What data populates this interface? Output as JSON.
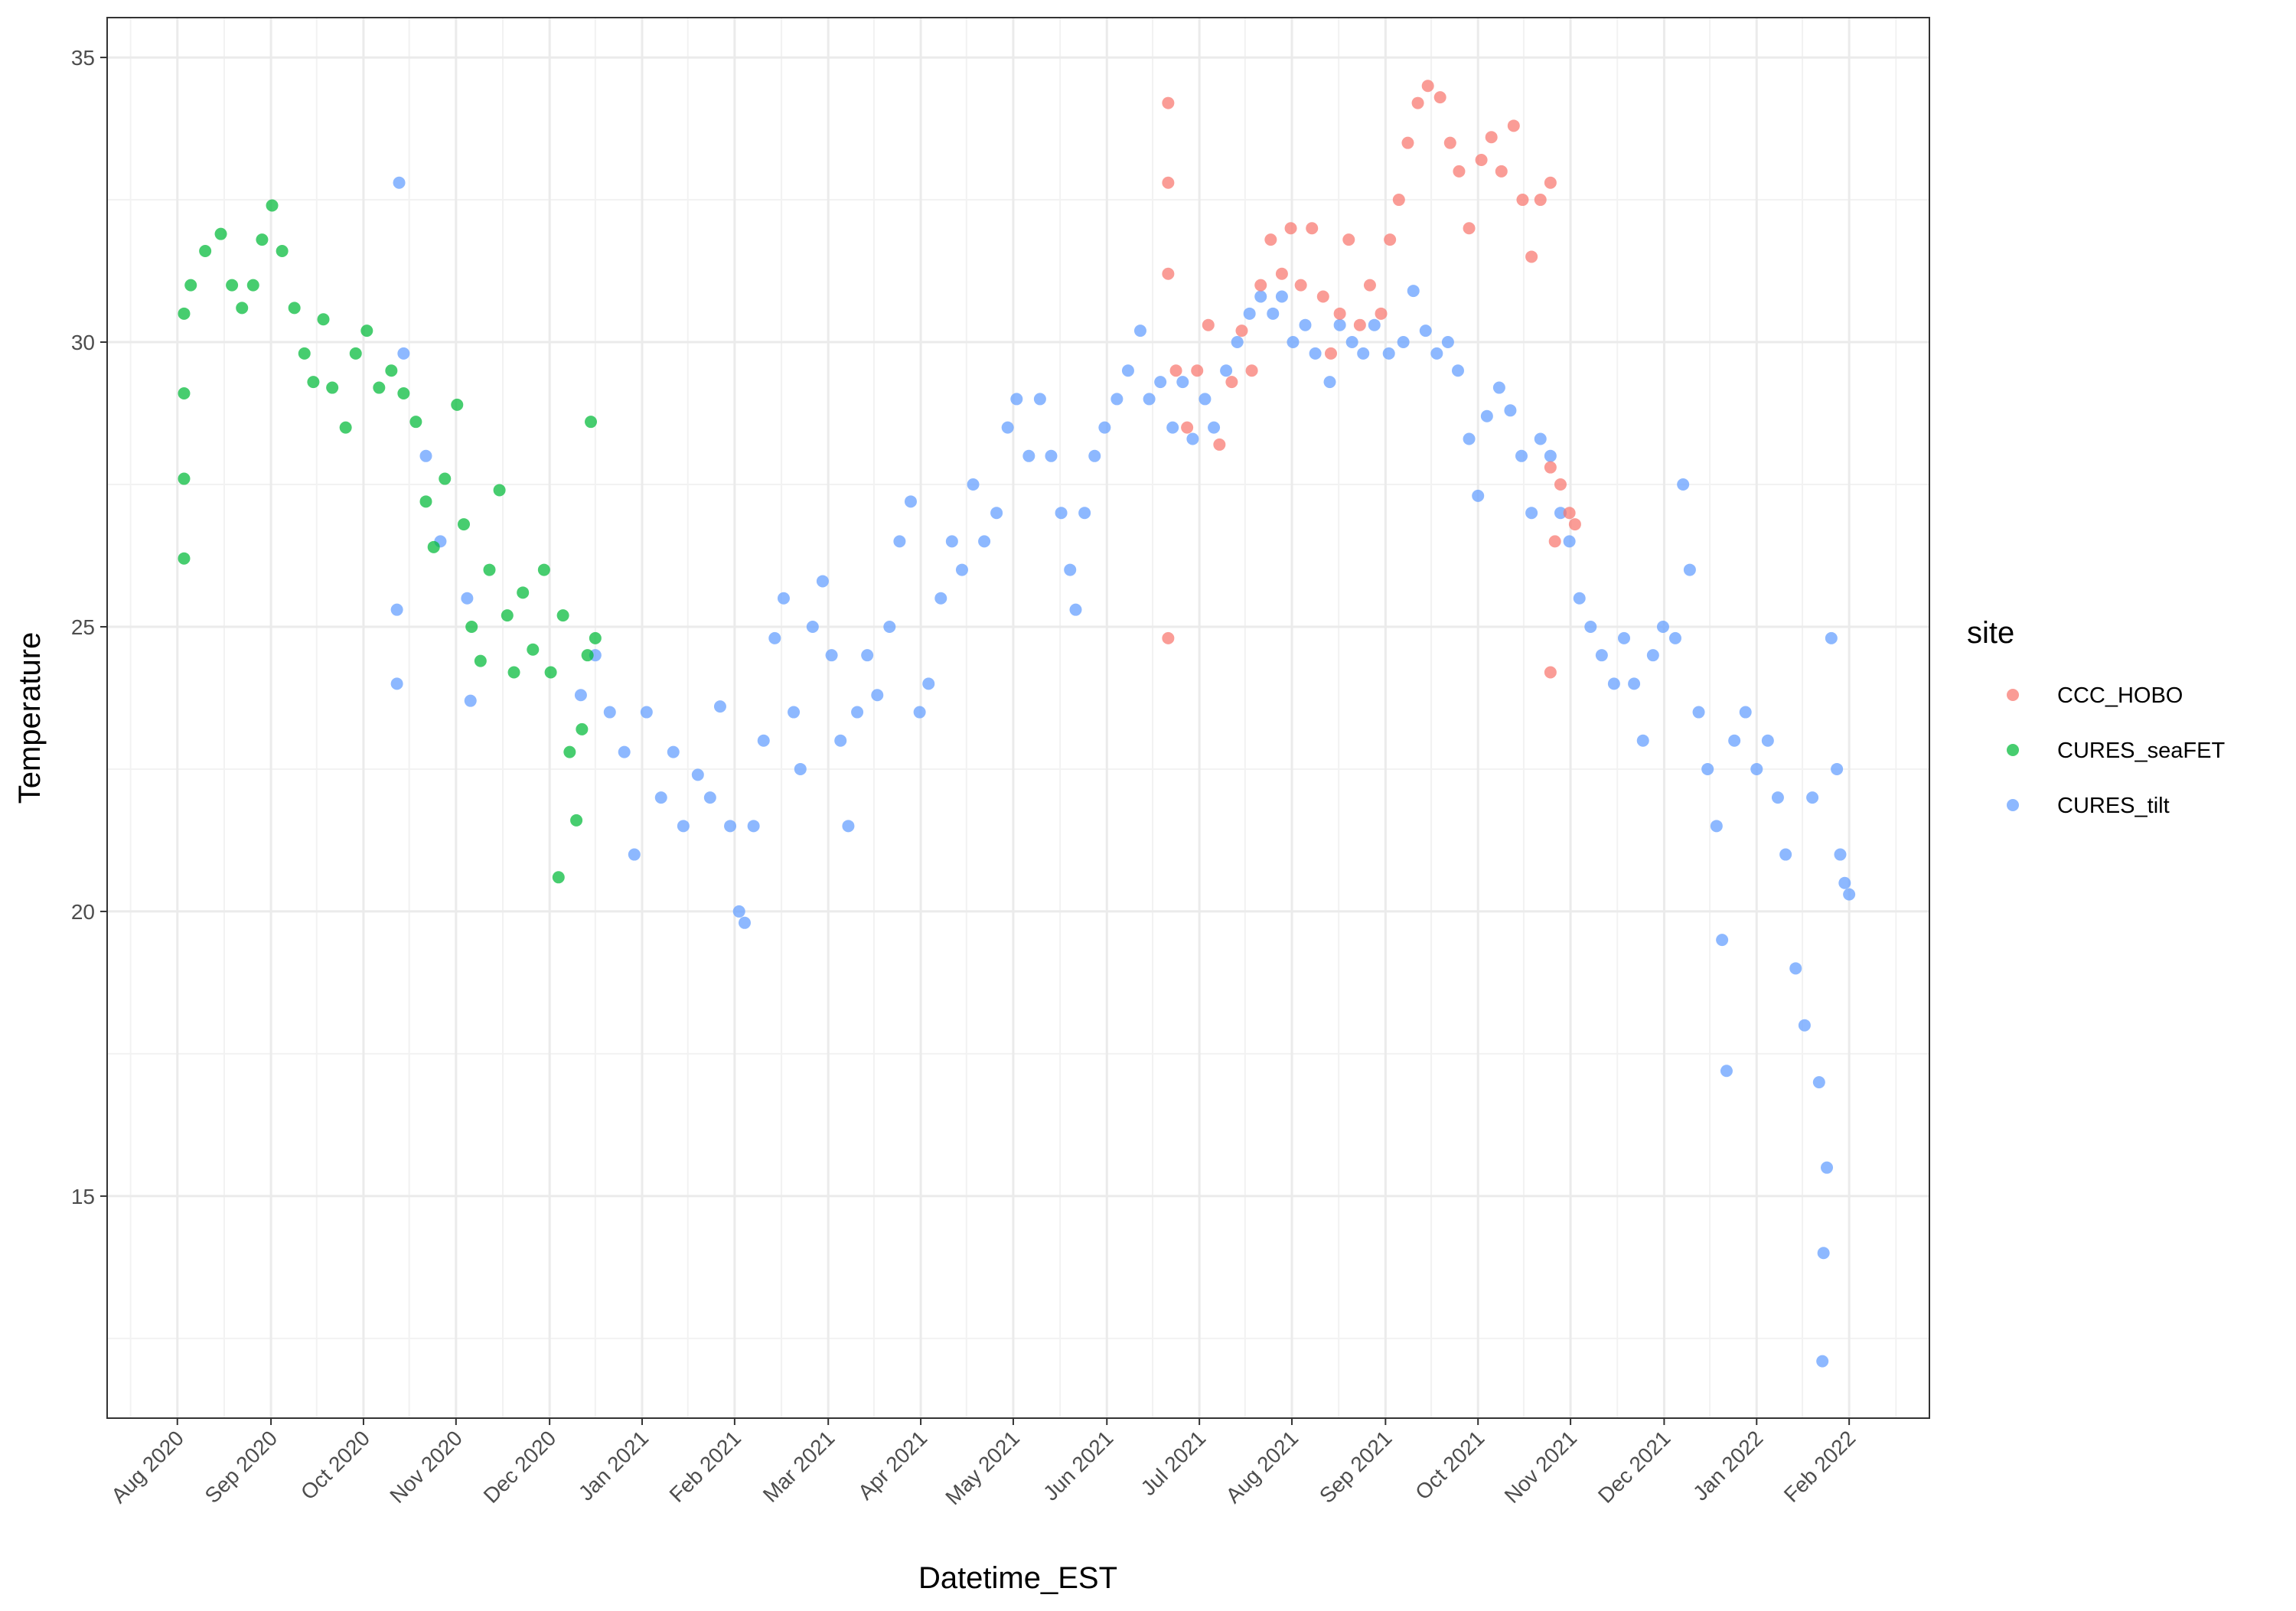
{
  "chart_data": {
    "type": "scatter",
    "x_label": "Datetime_EST",
    "y_label": "Temperature",
    "legend_title": "site",
    "legend": "right",
    "grid": true,
    "xlim": [
      2020.52,
      2022.155
    ],
    "xticks": [
      {
        "value": 2020.583,
        "label": "Aug 2020"
      },
      {
        "value": 2020.667,
        "label": "Sep 2020"
      },
      {
        "value": 2020.75,
        "label": "Oct 2020"
      },
      {
        "value": 2020.833,
        "label": "Nov 2020"
      },
      {
        "value": 2020.917,
        "label": "Dec 2020"
      },
      {
        "value": 2021,
        "label": "Jan 2021"
      },
      {
        "value": 2021.083,
        "label": "Feb 2021"
      },
      {
        "value": 2021.167,
        "label": "Mar 2021"
      },
      {
        "value": 2021.25,
        "label": "Apr 2021"
      },
      {
        "value": 2021.333,
        "label": "May 2021"
      },
      {
        "value": 2021.417,
        "label": "Jun 2021"
      },
      {
        "value": 2021.5,
        "label": "Jul 2021"
      },
      {
        "value": 2021.583,
        "label": "Aug 2021"
      },
      {
        "value": 2021.667,
        "label": "Sep 2021"
      },
      {
        "value": 2021.75,
        "label": "Oct 2021"
      },
      {
        "value": 2021.833,
        "label": "Nov 2021"
      },
      {
        "value": 2021.917,
        "label": "Dec 2021"
      },
      {
        "value": 2022,
        "label": "Jan 2022"
      },
      {
        "value": 2022.083,
        "label": "Feb 2022"
      }
    ],
    "ylim": [
      11.1,
      35.7
    ],
    "yticks": [
      15,
      20,
      25,
      30,
      35
    ],
    "series": [
      {
        "name": "CCC_HOBO",
        "color": "#F8766D",
        "x": [
          2021.472,
          2021.472,
          2021.472,
          2021.472,
          2021.479,
          2021.489,
          2021.498,
          2021.508,
          2021.518,
          2021.529,
          2021.538,
          2021.547,
          2021.555,
          2021.564,
          2021.574,
          2021.582,
          2021.591,
          2021.601,
          2021.611,
          2021.618,
          2021.626,
          2021.634,
          2021.644,
          2021.653,
          2021.663,
          2021.671,
          2021.679,
          2021.687,
          2021.696,
          2021.705,
          2021.716,
          2021.725,
          2021.733,
          2021.742,
          2021.753,
          2021.762,
          2021.771,
          2021.782,
          2021.79,
          2021.798,
          2021.806,
          2021.815,
          2021.815,
          2021.819,
          2021.824,
          2021.832,
          2021.837,
          2021.815
        ],
        "values": [
          34.2,
          32.8,
          31.2,
          24.8,
          29.5,
          28.5,
          29.5,
          30.3,
          28.2,
          29.3,
          30.2,
          29.5,
          31.0,
          31.8,
          31.2,
          32.0,
          31.0,
          32.0,
          30.8,
          29.8,
          30.5,
          31.8,
          30.3,
          31.0,
          30.5,
          31.8,
          32.5,
          33.5,
          34.2,
          34.5,
          34.3,
          33.5,
          33.0,
          32.0,
          33.2,
          33.6,
          33.0,
          33.8,
          32.5,
          31.5,
          32.5,
          32.8,
          27.8,
          26.5,
          27.5,
          27.0,
          26.8,
          24.2
        ]
      },
      {
        "name": "CURES_seaFET",
        "color": "#00BA38",
        "x": [
          2020.589,
          2020.589,
          2020.589,
          2020.589,
          2020.595,
          2020.608,
          2020.622,
          2020.632,
          2020.641,
          2020.651,
          2020.659,
          2020.668,
          2020.677,
          2020.688,
          2020.697,
          2020.705,
          2020.714,
          2020.722,
          2020.734,
          2020.743,
          2020.753,
          2020.764,
          2020.775,
          2020.786,
          2020.797,
          2020.806,
          2020.813,
          2020.823,
          2020.834,
          2020.84,
          2020.847,
          2020.855,
          2020.863,
          2020.872,
          2020.879,
          2020.885,
          2020.893,
          2020.902,
          2020.912,
          2020.918,
          2020.925,
          2020.929,
          2020.935,
          2020.941,
          2020.946,
          2020.951,
          2020.954,
          2020.958
        ],
        "values": [
          26.2,
          27.6,
          29.1,
          30.5,
          31.0,
          31.6,
          31.9,
          31.0,
          30.6,
          31.0,
          31.8,
          32.4,
          31.6,
          30.6,
          29.8,
          29.3,
          30.4,
          29.2,
          28.5,
          29.8,
          30.2,
          29.2,
          29.5,
          29.1,
          28.6,
          27.2,
          26.4,
          27.6,
          28.9,
          26.8,
          25.0,
          24.4,
          26.0,
          27.4,
          25.2,
          24.2,
          25.6,
          24.6,
          26.0,
          24.2,
          20.6,
          25.2,
          22.8,
          21.6,
          23.2,
          24.5,
          28.6,
          24.8
        ]
      },
      {
        "name": "CURES_tilt",
        "color": "#619CFF",
        "x": [
          2020.78,
          2020.78,
          2020.782,
          2020.786,
          2020.806,
          2020.819,
          2020.843,
          2020.846,
          2020.945,
          2020.958,
          2020.971,
          2020.984,
          2020.993,
          2021.004,
          2021.017,
          2021.028,
          2021.037,
          2021.05,
          2021.061,
          2021.07,
          2021.079,
          2021.087,
          2021.092,
          2021.1,
          2021.109,
          2021.119,
          2021.127,
          2021.136,
          2021.142,
          2021.153,
          2021.162,
          2021.17,
          2021.178,
          2021.185,
          2021.193,
          2021.202,
          2021.211,
          2021.222,
          2021.231,
          2021.241,
          2021.249,
          2021.257,
          2021.268,
          2021.278,
          2021.287,
          2021.297,
          2021.307,
          2021.318,
          2021.328,
          2021.336,
          2021.347,
          2021.357,
          2021.367,
          2021.376,
          2021.384,
          2021.389,
          2021.397,
          2021.406,
          2021.415,
          2021.426,
          2021.436,
          2021.447,
          2021.455,
          2021.465,
          2021.476,
          2021.485,
          2021.494,
          2021.505,
          2021.513,
          2021.524,
          2021.534,
          2021.545,
          2021.555,
          2021.566,
          2021.574,
          2021.584,
          2021.595,
          2021.604,
          2021.617,
          2021.626,
          2021.637,
          2021.647,
          2021.657,
          2021.67,
          2021.683,
          2021.692,
          2021.703,
          2021.713,
          2021.723,
          2021.732,
          2021.742,
          2021.75,
          2021.758,
          2021.769,
          2021.779,
          2021.789,
          2021.798,
          2021.806,
          2021.815,
          2021.824,
          2021.832,
          2021.841,
          2021.851,
          2021.861,
          2021.872,
          2021.881,
          2021.89,
          2021.898,
          2021.907,
          2021.916,
          2021.927,
          2021.934,
          2021.94,
          2021.948,
          2021.956,
          2021.964,
          2021.969,
          2021.973,
          2021.98,
          2021.99,
          2022.0,
          2022.01,
          2022.019,
          2022.026,
          2022.035,
          2022.043,
          2022.05,
          2022.056,
          2022.059,
          2022.06,
          2022.063,
          2022.067,
          2022.072,
          2022.075,
          2022.079,
          2022.083
        ],
        "values": [
          24.0,
          25.3,
          32.8,
          29.8,
          28.0,
          26.5,
          25.5,
          23.7,
          23.8,
          24.5,
          23.5,
          22.8,
          21.0,
          23.5,
          22.0,
          22.8,
          21.5,
          22.4,
          22.0,
          23.6,
          21.5,
          20.0,
          19.8,
          21.5,
          23.0,
          24.8,
          25.5,
          23.5,
          22.5,
          25.0,
          25.8,
          24.5,
          23.0,
          21.5,
          23.5,
          24.5,
          23.8,
          25.0,
          26.5,
          27.2,
          23.5,
          24.0,
          25.5,
          26.5,
          26.0,
          27.5,
          26.5,
          27.0,
          28.5,
          29.0,
          28.0,
          29.0,
          28.0,
          27.0,
          26.0,
          25.3,
          27.0,
          28.0,
          28.5,
          29.0,
          29.5,
          30.2,
          29.0,
          29.3,
          28.5,
          29.3,
          28.3,
          29.0,
          28.5,
          29.5,
          30.0,
          30.5,
          30.8,
          30.5,
          30.8,
          30.0,
          30.3,
          29.8,
          29.3,
          30.3,
          30.0,
          29.8,
          30.3,
          29.8,
          30.0,
          30.9,
          30.2,
          29.8,
          30.0,
          29.5,
          28.3,
          27.3,
          28.7,
          29.2,
          28.8,
          28.0,
          27.0,
          28.3,
          28.0,
          27.0,
          26.5,
          25.5,
          25.0,
          24.5,
          24.0,
          24.8,
          24.0,
          23.0,
          24.5,
          25.0,
          24.8,
          27.5,
          26.0,
          23.5,
          22.5,
          21.5,
          19.5,
          17.2,
          23.0,
          23.5,
          22.5,
          23.0,
          22.0,
          21.0,
          19.0,
          18.0,
          22.0,
          17.0,
          12.1,
          14.0,
          15.5,
          24.8,
          22.5,
          21.0,
          20.5,
          20.3
        ]
      }
    ]
  }
}
